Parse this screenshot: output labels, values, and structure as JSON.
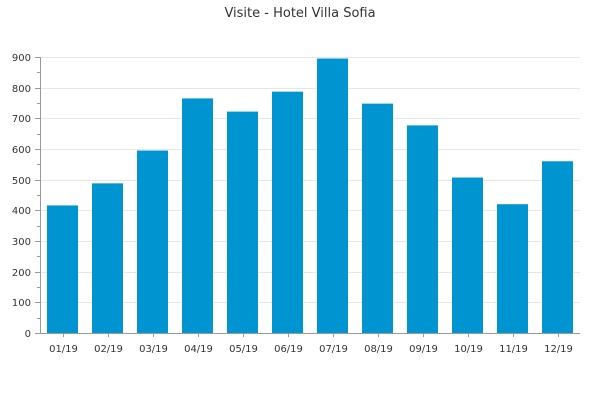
{
  "chart_data": {
    "type": "bar",
    "title": "Visite - Hotel Villa Sofia",
    "xlabel": "",
    "ylabel": "",
    "categories": [
      "01/19",
      "02/19",
      "03/19",
      "04/19",
      "05/19",
      "06/19",
      "07/19",
      "08/19",
      "09/19",
      "10/19",
      "11/19",
      "12/19"
    ],
    "values": [
      416,
      488,
      595,
      765,
      722,
      787,
      895,
      748,
      677,
      507,
      420,
      560
    ],
    "ylim": [
      0,
      900
    ],
    "yticks": [
      0,
      100,
      200,
      300,
      400,
      500,
      600,
      700,
      800,
      900
    ],
    "grid": true,
    "legend": "none",
    "bar_color": "#0095d0"
  }
}
